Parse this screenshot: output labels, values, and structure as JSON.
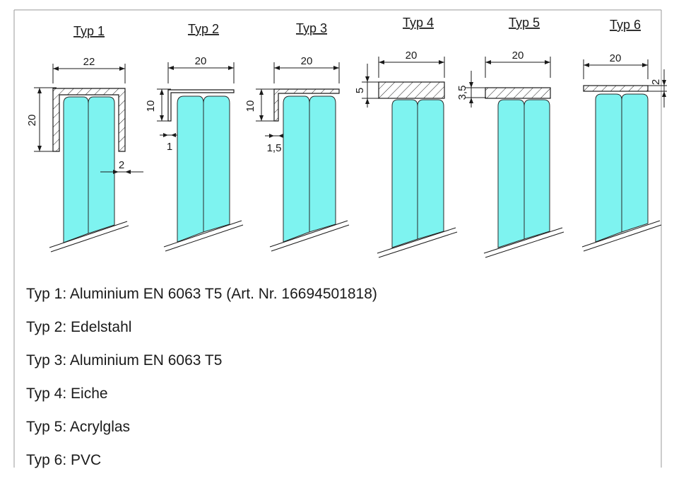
{
  "titles": [
    "Typ 1",
    "Typ 2",
    "Typ 3",
    "Typ 4",
    "Typ 5",
    "Typ 6"
  ],
  "dimensions": {
    "t1_width": "22",
    "t1_height": "20",
    "t1_wall": "2",
    "t2_width": "20",
    "t2_height": "10",
    "t2_wall": "1",
    "t3_width": "20",
    "t3_height": "10",
    "t3_wall": "1,5",
    "t4_width": "20",
    "t4_thickness": "5",
    "t5_width": "20",
    "t5_thickness": "3,5",
    "t6_width": "20",
    "t6_thickness": "2"
  },
  "legend": [
    "Typ 1: Aluminium EN 6063 T5 (Art. Nr. 16694501818)",
    "Typ 2: Edelstahl",
    "Typ 3: Aluminium EN 6063 T5",
    "Typ 4: Eiche",
    "Typ 5: Acrylglas",
    "Typ 6: PVC"
  ],
  "colors": {
    "glass": "#7ef3f0",
    "line": "#1a1a1a",
    "frame": "#9a9a9a"
  }
}
